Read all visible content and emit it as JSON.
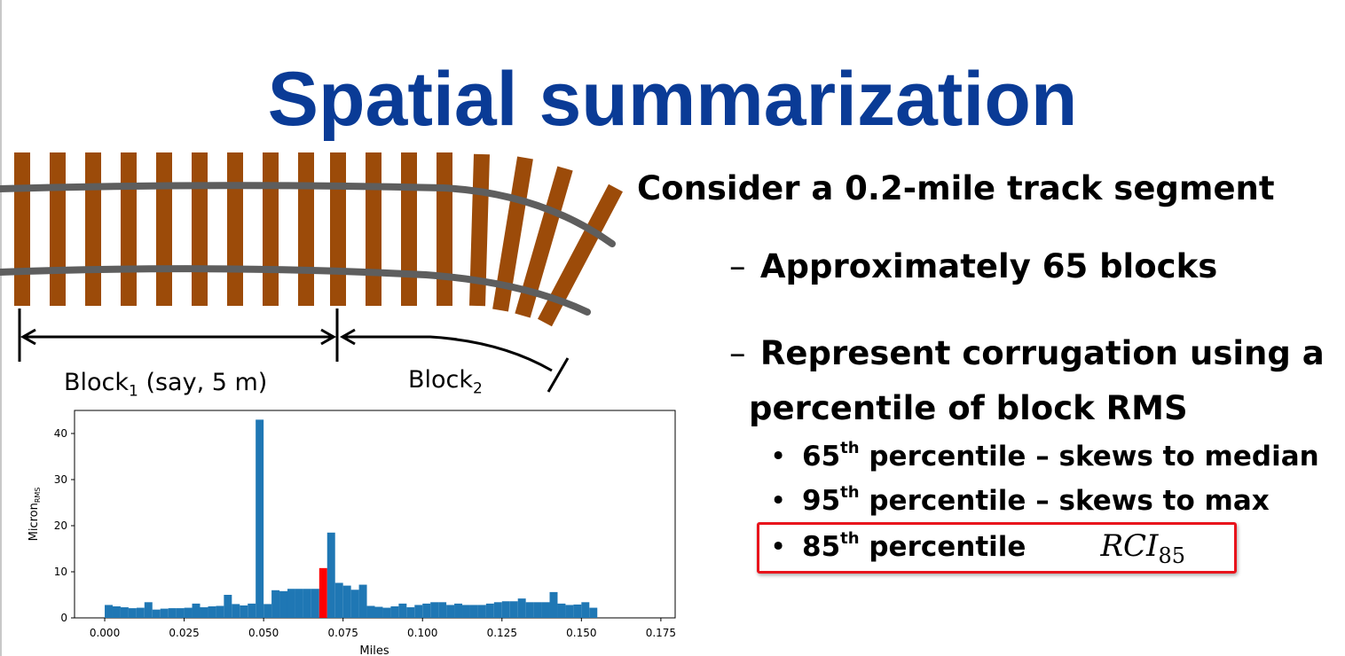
{
  "title": "Spatial summarization",
  "diagram": {
    "block1_label": "Block",
    "block1_sub": "1",
    "block1_suffix": " (say, 5 m)",
    "block2_label": "Block",
    "block2_sub": "2",
    "colors": {
      "tie": "#9c4b09",
      "rail": "#5e5e5e"
    }
  },
  "bullets": {
    "main": "Consider a 0.2-mile track segment",
    "dash_symbol": "–",
    "sub1": "Approximately 65 blocks",
    "sub2_line1": "Represent corrugation using a",
    "sub2_line2": "percentile of block RMS",
    "dot_symbol": "•",
    "items": [
      {
        "num": "65",
        "sup": "th",
        "text": " percentile – skews to median"
      },
      {
        "num": "95",
        "sup": "th",
        "text": " percentile – skews to max"
      },
      {
        "num": "85",
        "sup": "th",
        "text": " percentile"
      }
    ],
    "formula_main": "RCI",
    "formula_sub": "85"
  },
  "chart_data": {
    "type": "bar",
    "xlabel": "Miles",
    "ylabel": "Micron",
    "ylabel_sub": "RMS",
    "xlim": [
      -0.0095,
      0.1795
    ],
    "ylim": [
      0,
      45
    ],
    "xticks": [
      "0.000",
      "0.025",
      "0.050",
      "0.075",
      "0.100",
      "0.125",
      "0.150",
      "0.175"
    ],
    "xtick_values": [
      0,
      0.025,
      0.05,
      0.075,
      0.1,
      0.125,
      0.15,
      0.175
    ],
    "yticks": [
      "0",
      "10",
      "20",
      "30",
      "40"
    ],
    "ytick_values": [
      0,
      10,
      20,
      30,
      40
    ],
    "bin_width": 0.0025,
    "x_start": 0.0,
    "values": [
      2.8,
      2.5,
      2.3,
      2.1,
      2.2,
      3.4,
      1.8,
      2.0,
      2.1,
      2.1,
      2.2,
      3.1,
      2.3,
      2.5,
      2.6,
      5.0,
      3.0,
      2.7,
      3.1,
      43.0,
      3.0,
      6.0,
      5.8,
      6.3,
      6.3,
      6.3,
      6.3,
      10.8,
      18.5,
      7.6,
      7.0,
      6.1,
      7.2,
      2.6,
      2.4,
      2.2,
      2.5,
      3.1,
      2.3,
      2.8,
      3.1,
      3.4,
      3.4,
      2.8,
      3.1,
      2.8,
      2.8,
      2.8,
      3.1,
      3.4,
      3.6,
      3.6,
      4.2,
      3.4,
      3.4,
      3.4,
      5.6,
      3.1,
      2.8,
      2.9,
      3.4,
      2.2
    ],
    "highlight_index": 27,
    "bar_color": "#1f77b4",
    "highlight_color": "#ff0000"
  }
}
